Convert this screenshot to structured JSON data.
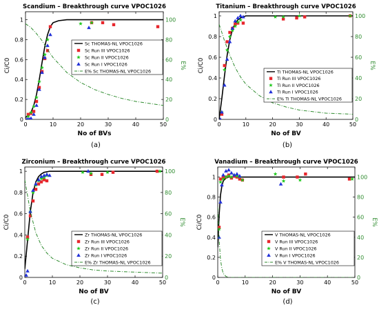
{
  "chart_data": [
    {
      "panel_label": "(a)",
      "type": "scatter",
      "title": "Scandium – Breakthrough curve VPOC1026",
      "xlabel": "No of BVs",
      "ylabel": "Ci/C0",
      "y2label": "E%",
      "xlim": [
        0,
        50
      ],
      "ylim": [
        0,
        1.08
      ],
      "y2lim": [
        0,
        108
      ],
      "xticks": [
        "0",
        "10",
        "20",
        "30",
        "40",
        "50"
      ],
      "yticks": [
        "0",
        "0.2",
        "0.4",
        "0.6",
        "0.8",
        "1"
      ],
      "y2ticks": [
        "0",
        "20",
        "40",
        "60",
        "80",
        "100"
      ],
      "legend_position": "center-right",
      "series": [
        {
          "name": "Sc THOMAS-NL VPOC1026",
          "kind": "line",
          "color": "#000000",
          "x": [
            0,
            1,
            2,
            3,
            4,
            5,
            6,
            7,
            8,
            9,
            10,
            12,
            15,
            20,
            30,
            40,
            50
          ],
          "y": [
            0.02,
            0.04,
            0.07,
            0.14,
            0.25,
            0.4,
            0.57,
            0.73,
            0.85,
            0.93,
            0.97,
            0.99,
            1.0,
            1.0,
            1.0,
            1.0,
            1.0
          ]
        },
        {
          "name": "Sc Run III VPOC1026",
          "kind": "square",
          "color": "#e8262c",
          "x": [
            1,
            2,
            3,
            4,
            5,
            6,
            7,
            8,
            9,
            24,
            28,
            32,
            48
          ],
          "y": [
            0.05,
            0.06,
            0.08,
            0.18,
            0.32,
            0.48,
            0.61,
            0.69,
            0.93,
            0.97,
            0.97,
            0.95,
            0.93
          ]
        },
        {
          "name": "Sc Run II VPOC1026",
          "kind": "star",
          "color": "#22c91f",
          "x": [
            1,
            2,
            3,
            4,
            5,
            6,
            7,
            8,
            20,
            24
          ],
          "y": [
            0.03,
            0.07,
            0.13,
            0.22,
            0.38,
            0.52,
            0.65,
            0.8,
            0.96,
            0.97
          ]
        },
        {
          "name": "Sc Run I VPOC1026",
          "kind": "triangle",
          "color": "#2231d8",
          "x": [
            0.5,
            1,
            1.5,
            2,
            3,
            4,
            5,
            6,
            7,
            8,
            9,
            23
          ],
          "y": [
            0.0,
            0.0,
            0.0,
            0.01,
            0.05,
            0.14,
            0.3,
            0.47,
            0.62,
            0.74,
            0.85,
            0.92
          ]
        },
        {
          "name": "E% Sc THOMAS-NL VPOC1026",
          "kind": "dashdot",
          "color": "#2e8b2e",
          "axis": "y2",
          "x": [
            0,
            2,
            4,
            6,
            8,
            10,
            15,
            20,
            25,
            30,
            35,
            40,
            45,
            50
          ],
          "y": [
            96,
            92,
            86,
            79,
            70,
            62,
            47,
            37,
            30,
            25,
            21,
            18,
            16,
            14
          ]
        }
      ]
    },
    {
      "panel_label": "(b)",
      "type": "scatter",
      "title": "Titanium – Breakthrough curve VPOC1026",
      "xlabel": "No of BV",
      "ylabel": "Ci/C0",
      "y2label": "E%",
      "xlim": [
        0,
        50
      ],
      "ylim": [
        0,
        1.04
      ],
      "y2lim": [
        0,
        104
      ],
      "xticks": [
        "0",
        "10",
        "20",
        "30",
        "40",
        "50"
      ],
      "yticks": [
        "0",
        "0.2",
        "0.4",
        "0.6",
        "0.8",
        "1"
      ],
      "y2ticks": [
        "0",
        "20",
        "40",
        "60",
        "80",
        "100"
      ],
      "legend_position": "center-right",
      "series": [
        {
          "name": "Ti THOMAS-NL VPOC1026",
          "kind": "line",
          "color": "#000000",
          "x": [
            0,
            1,
            2,
            3,
            4,
            5,
            6,
            7,
            8,
            9,
            10,
            15,
            20,
            30,
            40,
            50
          ],
          "y": [
            0.0,
            0.2,
            0.42,
            0.62,
            0.77,
            0.87,
            0.93,
            0.96,
            0.98,
            0.99,
            1.0,
            1.0,
            1.0,
            1.0,
            1.0,
            1.0
          ]
        },
        {
          "name": "Ti Run III VPOC1026",
          "kind": "square",
          "color": "#e8262c",
          "x": [
            1,
            2,
            3,
            4,
            5,
            6,
            7,
            9,
            24,
            29,
            32,
            49
          ],
          "y": [
            0.05,
            0.52,
            0.75,
            0.84,
            0.88,
            0.92,
            0.93,
            0.93,
            0.97,
            0.98,
            0.99,
            1.0
          ]
        },
        {
          "name": "Ti Run II VPOC1026",
          "kind": "star",
          "color": "#22c91f",
          "x": [
            1,
            2,
            3,
            4,
            5,
            6,
            7,
            8,
            21,
            24,
            30,
            49
          ],
          "y": [
            0.07,
            0.48,
            0.67,
            0.8,
            0.86,
            0.9,
            0.94,
            0.96,
            0.99,
            0.99,
            1.0,
            1.0
          ]
        },
        {
          "name": "Ti Run I VPOC1026",
          "kind": "triangle",
          "color": "#2231d8",
          "x": [
            0.5,
            1,
            2,
            3,
            4,
            5,
            6,
            7,
            8,
            9
          ],
          "y": [
            0.0,
            0.07,
            0.33,
            0.58,
            0.75,
            0.88,
            0.95,
            0.98,
            1.0,
            0.99
          ]
        },
        {
          "name": "E% Ti THOMAS-NL VPOC1026",
          "kind": "dashdot",
          "color": "#2e8b2e",
          "axis": "y2",
          "x": [
            0,
            2,
            4,
            6,
            8,
            10,
            15,
            20,
            25,
            30,
            40,
            50
          ],
          "y": [
            92,
            76,
            62,
            50,
            41,
            34,
            23,
            16,
            12,
            9,
            6,
            5
          ]
        }
      ]
    },
    {
      "panel_label": "(c)",
      "type": "scatter",
      "title": "Zirconium – Breakthrough curve VPOC1026",
      "xlabel": "No of BV",
      "ylabel": "Ci/C0",
      "y2label": "E%",
      "xlim": [
        0,
        50
      ],
      "ylim": [
        0,
        1.04
      ],
      "y2lim": [
        0,
        104
      ],
      "xticks": [
        "0",
        "10",
        "20",
        "30",
        "40",
        "50"
      ],
      "yticks": [
        "0",
        "0.2",
        "0.4",
        "0.6",
        "0.8",
        "1"
      ],
      "y2ticks": [
        "0",
        "20",
        "40",
        "60",
        "80",
        "100"
      ],
      "legend_position": "bottom-right",
      "series": [
        {
          "name": "Zr THOMAS-NL VPOC1026",
          "kind": "line",
          "color": "#000000",
          "x": [
            0,
            1,
            2,
            3,
            4,
            5,
            6,
            7,
            8,
            9,
            10,
            15,
            20,
            30,
            40,
            50
          ],
          "y": [
            0.08,
            0.35,
            0.62,
            0.8,
            0.9,
            0.95,
            0.975,
            0.99,
            0.995,
            1.0,
            1.0,
            1.0,
            1.0,
            1.0,
            1.0,
            1.0
          ]
        },
        {
          "name": "Zr Run III VPOC1026",
          "kind": "square",
          "color": "#e8262c",
          "x": [
            1,
            2,
            3,
            4,
            5,
            6,
            7,
            8,
            24,
            28,
            32,
            48
          ],
          "y": [
            0.38,
            0.58,
            0.72,
            0.83,
            0.88,
            0.9,
            0.92,
            0.91,
            0.97,
            0.97,
            0.99,
            1.0
          ]
        },
        {
          "name": "Zr Run II VPOC1026",
          "kind": "star",
          "color": "#22c91f",
          "x": [
            1,
            2,
            3,
            4,
            5,
            6,
            7,
            8,
            21,
            24,
            30,
            49
          ],
          "y": [
            0.36,
            0.62,
            0.8,
            0.87,
            0.91,
            0.93,
            0.94,
            0.96,
            0.99,
            0.98,
            0.99,
            1.0
          ]
        },
        {
          "name": "Zr Run I VPOC1026",
          "kind": "triangle",
          "color": "#2231d8",
          "x": [
            0.5,
            1,
            2,
            3,
            4,
            5,
            6,
            7,
            8,
            9,
            23
          ],
          "y": [
            0.02,
            0.06,
            0.62,
            0.82,
            0.88,
            0.92,
            0.95,
            0.96,
            0.97,
            0.96,
            1.0
          ]
        },
        {
          "name": "E% Zr THOMAS-NL VPOC1026",
          "kind": "dashdot",
          "color": "#2e8b2e",
          "axis": "y2",
          "x": [
            0,
            2,
            4,
            6,
            8,
            10,
            15,
            20,
            25,
            30,
            40,
            50
          ],
          "y": [
            92,
            62,
            42,
            30,
            23,
            18,
            12,
            9,
            7,
            6,
            5,
            4
          ]
        }
      ]
    },
    {
      "panel_label": "(d)",
      "type": "scatter",
      "title": "Vanadium – Breakthrough curve VPOC1026",
      "xlabel": "No of BV",
      "ylabel": "Ci/C0",
      "y2label": "E%",
      "xlim": [
        0,
        50
      ],
      "ylim": [
        0,
        1.1
      ],
      "y2lim": [
        0,
        110
      ],
      "xticks": [
        "0",
        "10",
        "20",
        "30",
        "40",
        "50"
      ],
      "yticks": [
        "0",
        "0.2",
        "0.4",
        "0.6",
        "0.8",
        "1"
      ],
      "y2ticks": [
        "0",
        "20",
        "40",
        "60",
        "80",
        "100"
      ],
      "legend_position": "bottom-right",
      "series": [
        {
          "name": "V THOMAS-NL VPOC1026",
          "kind": "line",
          "color": "#000000",
          "x": [
            0,
            0.5,
            1,
            1.5,
            2,
            3,
            4,
            5,
            10,
            20,
            30,
            40,
            50
          ],
          "y": [
            0.3,
            0.62,
            0.82,
            0.91,
            0.96,
            0.99,
            1.0,
            1.0,
            1.0,
            1.0,
            1.0,
            1.0,
            1.0
          ]
        },
        {
          "name": "V Run III VPOC1026",
          "kind": "square",
          "color": "#e8262c",
          "x": [
            0.5,
            1,
            2,
            3,
            4,
            5,
            6,
            7,
            8,
            9,
            24,
            29,
            32,
            48
          ],
          "y": [
            0.5,
            0.98,
            1.0,
            1.0,
            1.02,
            0.99,
            1.01,
            1.0,
            0.98,
            0.97,
            1.0,
            1.0,
            1.03,
            0.98
          ]
        },
        {
          "name": "V Run II VPOC1026",
          "kind": "star",
          "color": "#22c91f",
          "x": [
            0.5,
            1,
            2,
            3,
            4,
            5,
            6,
            7,
            8,
            9,
            21,
            24,
            30,
            49
          ],
          "y": [
            0.48,
            0.95,
            0.98,
            1.0,
            1.01,
            1.0,
            1.02,
            1.01,
            1.0,
            0.97,
            1.03,
            0.96,
            0.97,
            0.98
          ]
        },
        {
          "name": "V Run I VPOC1026",
          "kind": "triangle",
          "color": "#2231d8",
          "x": [
            0.5,
            1,
            1.5,
            2,
            3,
            4,
            5,
            6,
            7,
            8,
            23
          ],
          "y": [
            0.4,
            0.75,
            0.92,
            1.02,
            1.06,
            1.07,
            1.04,
            1.02,
            1.03,
            1.01,
            0.93
          ]
        },
        {
          "name": "E% V THOMAS-NL VPOC1026",
          "kind": "dashdot",
          "color": "#2e8b2e",
          "axis": "y2",
          "x": [
            0,
            0.5,
            1,
            1.5,
            2,
            3,
            4,
            5,
            10,
            20,
            30,
            40,
            50
          ],
          "y": [
            70,
            38,
            18,
            9,
            4,
            1,
            0,
            0,
            0,
            0,
            0,
            0,
            0
          ]
        }
      ]
    }
  ]
}
